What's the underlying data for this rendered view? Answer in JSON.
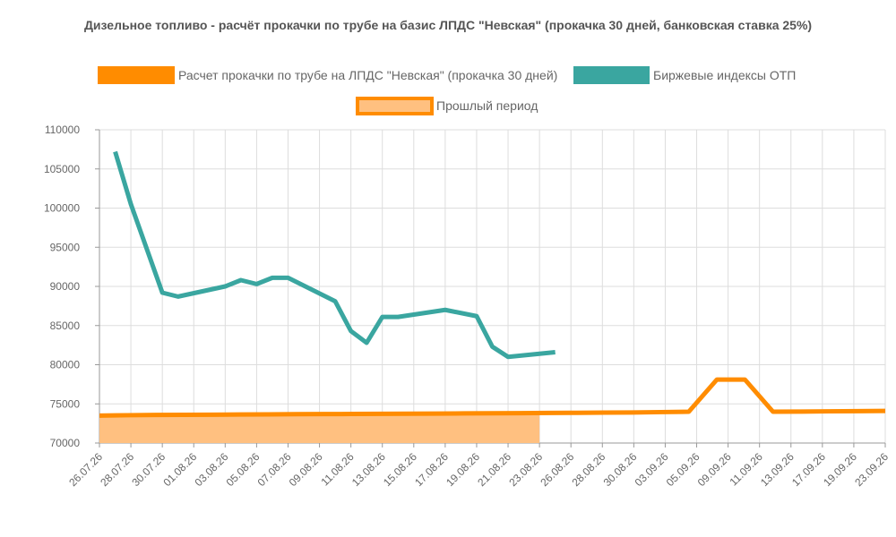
{
  "chart_data": {
    "type": "line",
    "title": "Дизельное топливо - расчёт прокачки по трубе на базис ЛПДС \"Невская\" (прокачка 30 дней, банковская ставка 25%)",
    "ylim": [
      70000,
      110000
    ],
    "y_ticks": [
      110000,
      105000,
      100000,
      95000,
      90000,
      85000,
      80000,
      75000,
      70000
    ],
    "x_labels": [
      "26.07.26",
      "28.07.26",
      "30.07.26",
      "01.08.26",
      "03.08.26",
      "05.08.26",
      "07.08.26",
      "09.08.26",
      "11.08.26",
      "13.08.26",
      "15.08.26",
      "17.08.26",
      "19.08.26",
      "21.08.26",
      "23.08.26",
      "26.08.26",
      "28.08.26",
      "30.08.26",
      "03.09.26",
      "05.09.26",
      "09.09.26",
      "11.09.26",
      "13.09.26",
      "17.09.26",
      "19.09.26",
      "23.09.26"
    ],
    "legend": [
      {
        "label": "Расчет прокачки по трубе на ЛПДС \"Невская\" (прокачка 30 дней)",
        "color": "#ff8c00",
        "style": "solid"
      },
      {
        "label": "Биржевые индексы ОТП",
        "color": "#3aa6a0",
        "style": "solid"
      },
      {
        "label": "Прошлый период",
        "color": "#ff8c00",
        "style": "filled"
      }
    ],
    "series": [
      {
        "name": "Расчет прокачки по трубе на ЛПДС \"Невская\" (прокачка 30 дней)",
        "color": "#ff8c00",
        "points": [
          [
            0,
            73500
          ],
          [
            1,
            73550
          ],
          [
            2,
            73580
          ],
          [
            3,
            73600
          ],
          [
            4,
            73620
          ],
          [
            5,
            73640
          ],
          [
            6,
            73660
          ],
          [
            7,
            73680
          ],
          [
            8,
            73700
          ],
          [
            9,
            73710
          ],
          [
            10,
            73730
          ],
          [
            11,
            73740
          ],
          [
            12,
            73760
          ],
          [
            13,
            73780
          ],
          [
            14,
            73800
          ],
          [
            15,
            73820
          ],
          [
            16,
            73840
          ],
          [
            17,
            73860
          ],
          [
            18,
            73880
          ],
          [
            19,
            73900
          ],
          [
            20,
            73950
          ],
          [
            21,
            74000
          ],
          [
            22,
            78100
          ],
          [
            23,
            78100
          ],
          [
            24,
            74000
          ],
          [
            25,
            74020
          ],
          [
            26,
            74050
          ],
          [
            27,
            74070
          ],
          [
            28,
            74100
          ]
        ]
      },
      {
        "name": "Биржевые индексы ОТП",
        "color": "#3aa6a0",
        "points": [
          [
            0.5,
            107200
          ],
          [
            1,
            100500
          ],
          [
            2,
            89200
          ],
          [
            2.5,
            88700
          ],
          [
            4,
            90000
          ],
          [
            4.5,
            90800
          ],
          [
            5,
            90300
          ],
          [
            5.5,
            91100
          ],
          [
            6,
            91100
          ],
          [
            7.5,
            88100
          ],
          [
            8,
            84300
          ],
          [
            8.5,
            82800
          ],
          [
            9,
            86100
          ],
          [
            9.5,
            86100
          ],
          [
            11,
            87000
          ],
          [
            12,
            86200
          ],
          [
            12.5,
            82300
          ],
          [
            13,
            81000
          ],
          [
            14.5,
            81600
          ]
        ]
      },
      {
        "name": "Прошлый период",
        "color": "#ffc080",
        "points": [
          [
            0,
            73500
          ],
          [
            14,
            73800
          ]
        ]
      }
    ]
  }
}
